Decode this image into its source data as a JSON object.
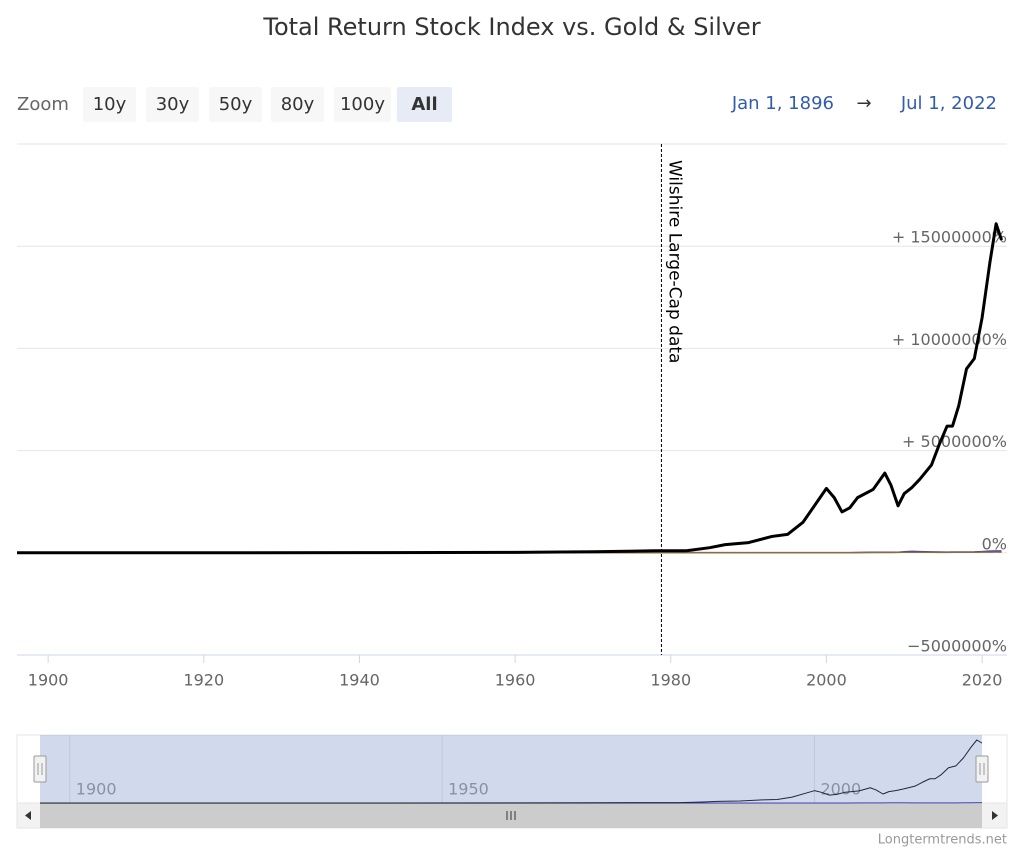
{
  "chart_data": {
    "type": "line",
    "title": "Total Return Stock Index vs. Gold & Silver",
    "zoom_label": "Zoom",
    "zoom_buttons": [
      "10y",
      "30y",
      "50y",
      "80y",
      "100y",
      "All"
    ],
    "selected_button": 5,
    "range_from": "Jan 1, 1896",
    "range_arrow": "→",
    "range_to": "Jul 1, 2022",
    "x": [
      1896,
      1920,
      1940,
      1960,
      1970,
      1978,
      1982,
      1985,
      1987,
      1990,
      1993,
      1995,
      1997,
      1999,
      2000,
      2001,
      2002,
      2003,
      2004,
      2006,
      2007.5,
      2008.3,
      2009.2,
      2010,
      2011,
      2012,
      2013.5,
      2014.5,
      2015.5,
      2016.2,
      2017,
      2018,
      2019,
      2020,
      2021,
      2021.8,
      2022.5
    ],
    "series": [
      {
        "color": "#000000",
        "values": [
          0,
          2000,
          8000,
          20000,
          50000,
          100000,
          100000,
          250000,
          400000,
          500000,
          800000,
          900000,
          1500000,
          2600000,
          3150000,
          2700000,
          2000000,
          2200000,
          2700000,
          3100000,
          3900000,
          3300000,
          2300000,
          2900000,
          3200000,
          3600000,
          4300000,
          5300000,
          6200000,
          6200000,
          7200000,
          9000000,
          9500000,
          11500000,
          14200000,
          16100000,
          15300000
        ]
      },
      {
        "color": "#8b6d3f",
        "values": [
          0,
          0,
          0,
          0,
          1000,
          5000,
          5000,
          5000,
          5000,
          5000,
          5000,
          5000,
          5000,
          5000,
          5000,
          5000,
          5000,
          5000,
          8000,
          12000,
          15000,
          15000,
          18000,
          25000,
          30000,
          30000,
          25000,
          22000,
          22000,
          24000,
          24000,
          24000,
          28000,
          35000,
          35000,
          36000,
          35000
        ]
      },
      {
        "color": "#3535b5",
        "values": [
          0,
          0,
          0,
          0,
          2000,
          10000,
          10000,
          10000,
          10000,
          10000,
          10000,
          10000,
          10000,
          10000,
          10000,
          10000,
          10000,
          10000,
          15000,
          25000,
          30000,
          30000,
          30000,
          50000,
          70000,
          60000,
          45000,
          40000,
          35000,
          40000,
          40000,
          40000,
          45000,
          60000,
          80000,
          90000,
          85000
        ]
      }
    ],
    "xlim": [
      1896,
      2023.2
    ],
    "xticks": [
      1900,
      1920,
      1940,
      1960,
      1980,
      2000,
      2020
    ],
    "ylim": [
      -5000000,
      20000000
    ],
    "yticks": [
      {
        "value": -5000000,
        "label": "−5000000%"
      },
      {
        "value": 0,
        "label": "0%"
      },
      {
        "value": 5000000,
        "label": "+ 5000000%"
      },
      {
        "value": 10000000,
        "label": "+ 10000000%"
      },
      {
        "value": 15000000,
        "label": "+ 15000000%"
      }
    ],
    "grid": true,
    "plot_line": {
      "value": 1978.8,
      "label": "Wilshire Large-Cap data"
    },
    "navigator_xticks": [
      1900,
      1950,
      2000
    ],
    "credits": "Longtermtrends.net"
  }
}
